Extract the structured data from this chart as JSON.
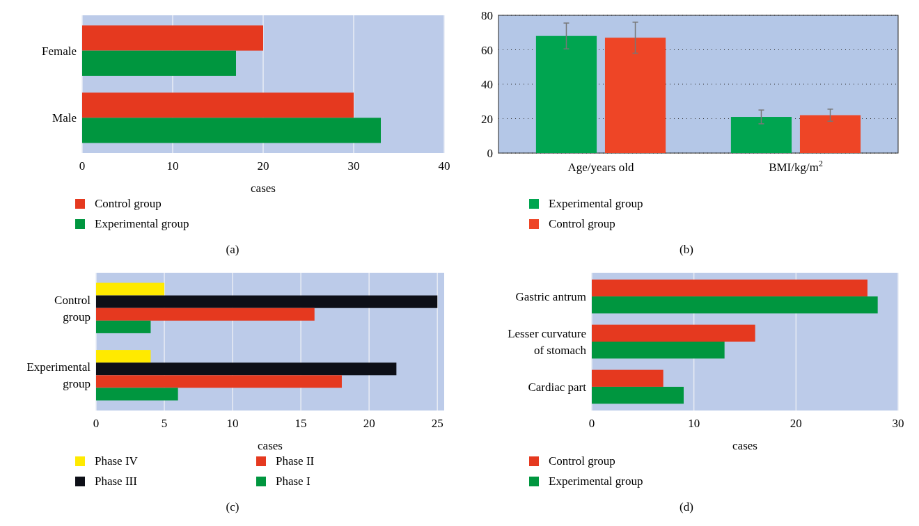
{
  "chart_data": [
    {
      "type": "bar",
      "orientation": "horizontal",
      "categories": [
        "Female",
        "Male"
      ],
      "series": [
        {
          "name": "Control group",
          "color": "#e5391f",
          "values": [
            20,
            30
          ]
        },
        {
          "name": "Experimental group",
          "color": "#00963f",
          "values": [
            17,
            33
          ]
        }
      ],
      "xlim": [
        0,
        40
      ],
      "xticks": [
        0,
        10,
        20,
        30,
        40
      ],
      "xlabel": "cases",
      "grid": "x",
      "legend": "bottom",
      "annotations": [
        "(a)"
      ]
    },
    {
      "type": "bar",
      "categories": [
        "Age/years old",
        "BMI/kg/m$^{2}$"
      ],
      "series": [
        {
          "name": "Experimental group",
          "color": "#00a550",
          "values": [
            68,
            21
          ],
          "errors": [
            7.5,
            4
          ]
        },
        {
          "name": "Control group",
          "color": "#ee4526",
          "values": [
            67,
            22
          ],
          "errors": [
            9,
            3.5
          ]
        }
      ],
      "ylim": [
        0,
        80
      ],
      "yticks": [
        0,
        20,
        40,
        60,
        80
      ],
      "grid": "y",
      "legend": "bottom",
      "annotations": [
        "(b)"
      ]
    },
    {
      "type": "bar",
      "orientation": "horizontal",
      "categories": [
        "Control group",
        "Experimental group"
      ],
      "series": [
        {
          "name": "Phase IV",
          "color": "#ffea00",
          "values": [
            5,
            4
          ]
        },
        {
          "name": "Phase III",
          "color": "#0d0f17",
          "values": [
            25,
            22
          ]
        },
        {
          "name": "Phase II",
          "color": "#e5391f",
          "values": [
            16,
            18
          ]
        },
        {
          "name": "Phase I",
          "color": "#00963f",
          "values": [
            4,
            6
          ]
        }
      ],
      "xlim": [
        0,
        25.5
      ],
      "xticks": [
        0,
        5,
        10,
        15,
        20,
        25
      ],
      "xlabel": "cases",
      "grid": "x",
      "legend": "bottom",
      "annotations": [
        "(c)"
      ]
    },
    {
      "type": "bar",
      "orientation": "horizontal",
      "categories": [
        "Gastric antrum",
        "Lesser curvature of stomach",
        "Cardiac part"
      ],
      "series": [
        {
          "name": "Control group",
          "color": "#e5391f",
          "values": [
            27,
            16,
            7
          ]
        },
        {
          "name": "Experimental group",
          "color": "#00963f",
          "values": [
            28,
            13,
            9
          ]
        }
      ],
      "xlim": [
        0,
        30
      ],
      "xticks": [
        0,
        10,
        20,
        30
      ],
      "xlabel": "cases",
      "grid": "x",
      "legend": "bottom",
      "annotations": [
        "(d)"
      ]
    }
  ]
}
